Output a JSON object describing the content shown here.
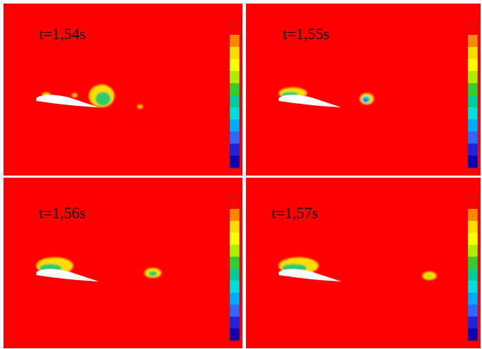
{
  "panels": [
    {
      "label": "t=1,54s"
    },
    {
      "label": "t=1,55s"
    },
    {
      "label": "t=1,56s"
    },
    {
      "label": "t=1,57s"
    }
  ]
}
